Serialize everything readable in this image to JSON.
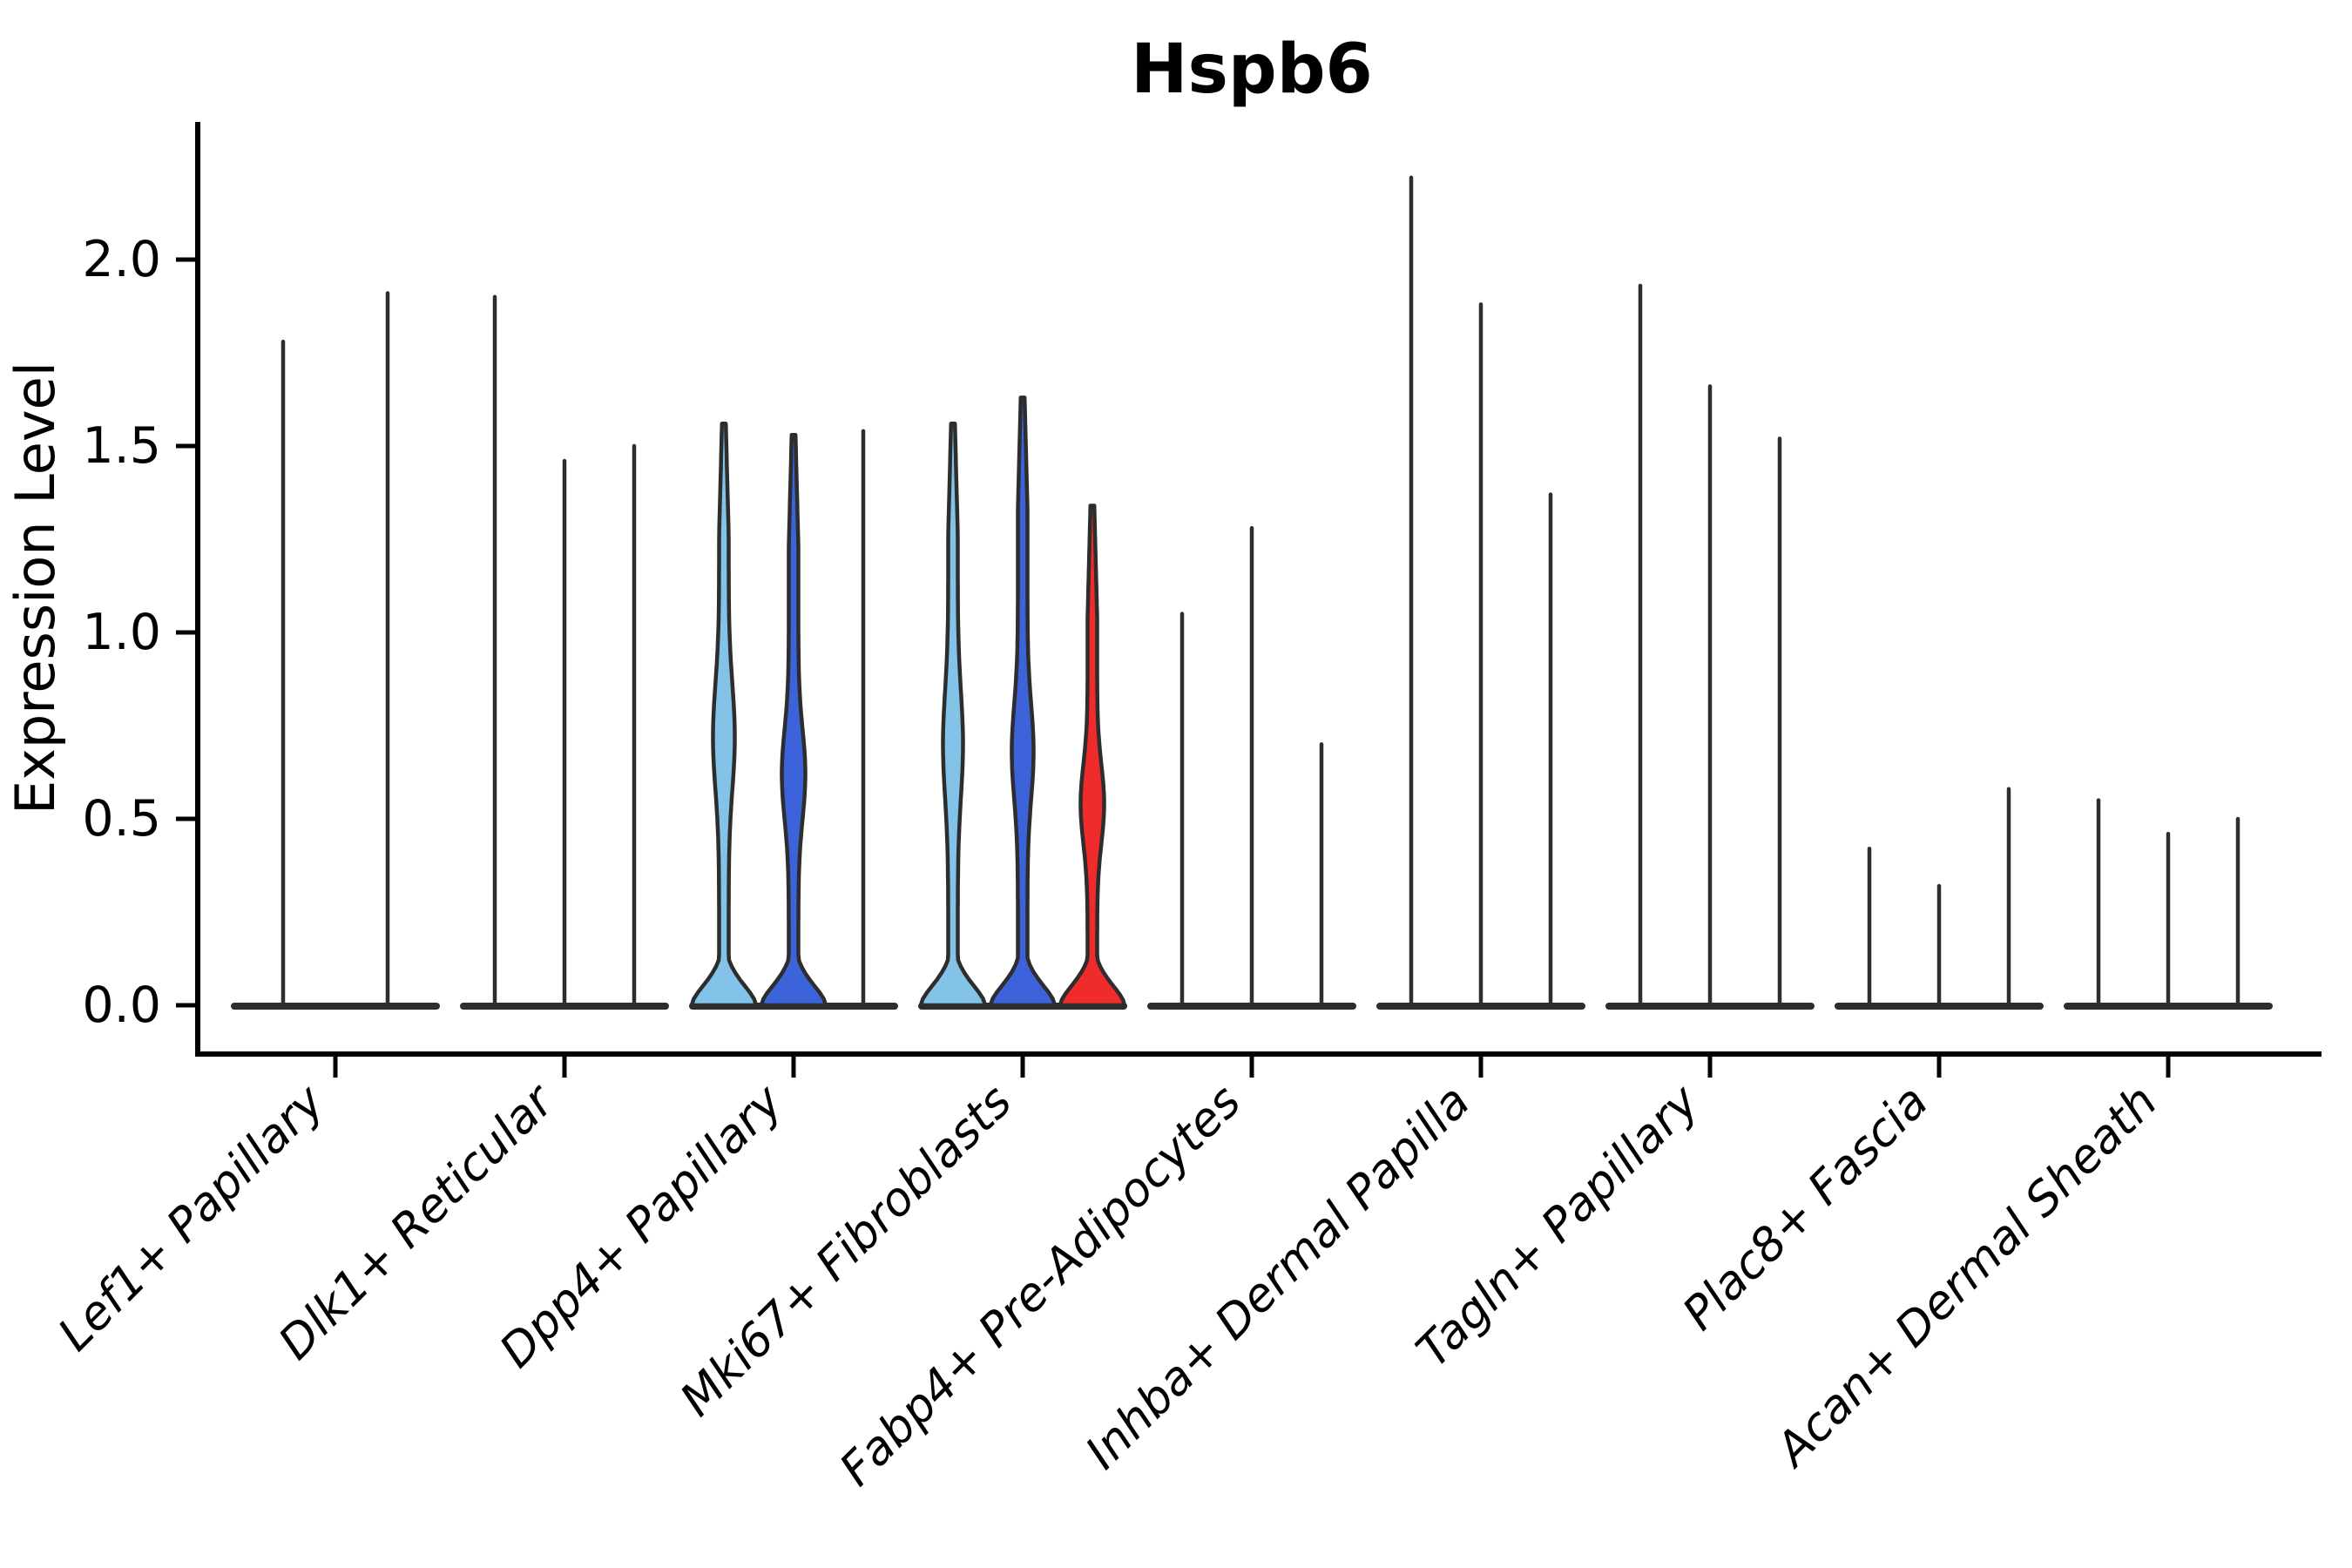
{
  "chart_data": {
    "type": "violin",
    "title": "Hspb6",
    "ylabel": "Expression Level",
    "xlabel": "",
    "grid": false,
    "legend": "none",
    "ylim": [
      0,
      2.37
    ],
    "ytick_labels": [
      "0.0",
      "0.5",
      "1.0",
      "1.5",
      "2.0"
    ],
    "ytick_values": [
      0.0,
      0.5,
      1.0,
      1.5,
      2.0
    ],
    "categories": [
      "Lef1+ Papillary",
      "Dlk1+ Reticular",
      "Dpp4+ Papillary",
      "Mki67+ Fibroblasts",
      "Fabp4+ Pre-Adipocytes",
      "Inhba+ Dermal Papilla",
      "Tagln+ Papillary",
      "Plac8+ Fascia",
      "Acan+ Dermal Sheath"
    ],
    "colors": {
      "light_blue": "#82C3E7",
      "dark_blue": "#3C63DA",
      "red": "#EF2B2B",
      "outline": "#2D2D2D",
      "axis": "#000000"
    },
    "groups": [
      {
        "category": "Lef1+ Papillary",
        "violins": [
          {
            "max": 1.78
          },
          {
            "max": 1.91
          }
        ]
      },
      {
        "category": "Dlk1+ Reticular",
        "violins": [
          {
            "max": 1.9
          },
          {
            "max": 1.46
          },
          {
            "max": 1.5
          }
        ]
      },
      {
        "category": "Dpp4+ Papillary",
        "violins": [
          {
            "max": 1.56,
            "fill": "light_blue",
            "bulge": {
              "c": 0.72,
              "a": 7,
              "s": 0.2
            }
          },
          {
            "max": 1.53,
            "fill": "dark_blue",
            "bulge": {
              "c": 0.62,
              "a": 8,
              "s": 0.17
            }
          },
          {
            "max": 1.54
          }
        ]
      },
      {
        "category": "Mki67+ Fibroblasts",
        "violins": [
          {
            "max": 1.56,
            "fill": "light_blue",
            "bulge": {
              "c": 0.7,
              "a": 6,
              "s": 0.2
            }
          },
          {
            "max": 1.63,
            "fill": "dark_blue",
            "bulge": {
              "c": 0.68,
              "a": 7,
              "s": 0.18
            }
          },
          {
            "max": 1.34,
            "fill": "red",
            "bulge": {
              "c": 0.54,
              "a": 8,
              "s": 0.15
            }
          }
        ]
      },
      {
        "category": "Fabp4+ Pre-Adipocytes",
        "violins": [
          {
            "max": 1.05
          },
          {
            "max": 1.28
          },
          {
            "max": 0.7
          }
        ]
      },
      {
        "category": "Inhba+ Dermal Papilla",
        "violins": [
          {
            "max": 2.22
          },
          {
            "max": 1.88
          },
          {
            "max": 1.37
          }
        ]
      },
      {
        "category": "Tagln+ Papillary",
        "violins": [
          {
            "max": 1.93
          },
          {
            "max": 1.66
          },
          {
            "max": 1.52
          }
        ]
      },
      {
        "category": "Plac8+ Fascia",
        "violins": [
          {
            "max": 0.42
          },
          {
            "max": 0.32
          },
          {
            "max": 0.58
          }
        ]
      },
      {
        "category": "Acan+ Dermal Sheath",
        "violins": [
          {
            "max": 0.55
          },
          {
            "max": 0.46
          },
          {
            "max": 0.5
          }
        ]
      }
    ]
  }
}
